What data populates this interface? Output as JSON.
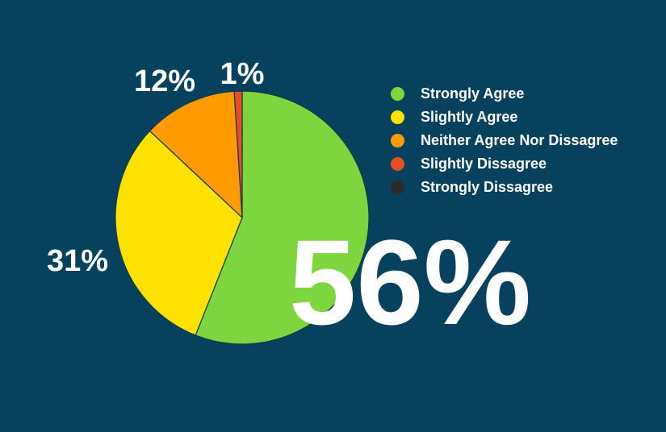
{
  "chart_data": {
    "type": "pie",
    "slices": [
      {
        "name": "Strongly Agree",
        "value": 56,
        "label": "",
        "color": "#7ed63f"
      },
      {
        "name": "Slightly Agree",
        "value": 31,
        "label": "31%",
        "color": "#ffe100"
      },
      {
        "name": "Neither Agree Nor Dissagree",
        "value": 12,
        "label": "12%",
        "color": "#ff9a00"
      },
      {
        "name": "Slightly Dissagree",
        "value": 1,
        "label": "1%",
        "color": "#e84d24"
      },
      {
        "name": "Strongly Dissagree",
        "value": 0,
        "label": "",
        "color": "#2b2b2b"
      }
    ],
    "highlight_label": "56%",
    "legend_position": "top-right"
  }
}
